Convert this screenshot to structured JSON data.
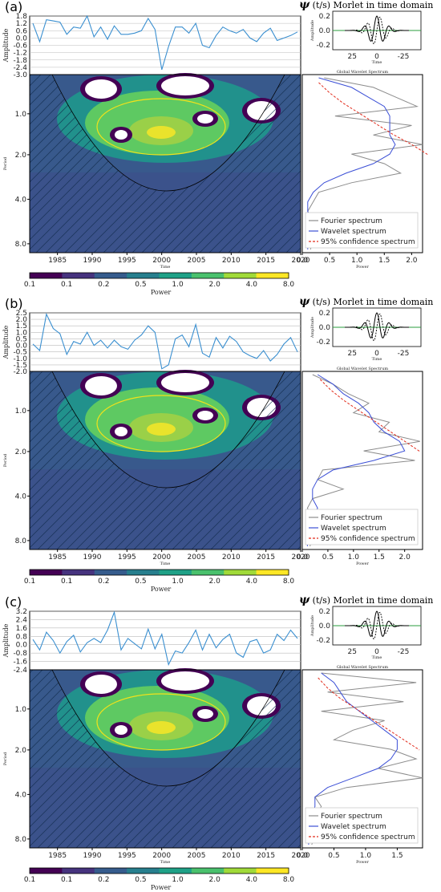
{
  "colors": {
    "colormap": [
      "#440154",
      "#3b528b",
      "#21918c",
      "#5ec962",
      "#9ad048",
      "#fde725"
    ],
    "timeseries": "#3a8fd0",
    "contour": "#f2e21a",
    "fourier": "#8c8c8c",
    "wavelet": "#3b4fd6",
    "confidence": "#e22b1b"
  },
  "labels": {
    "amplitude": "Amplitude",
    "period": "Period",
    "time": "Time",
    "power": "Power",
    "global_title": "Global Wavelet Spectrum",
    "morlet_title_sym": "ψ",
    "morlet_title_rest": "(t/s) Morlet in time domain",
    "morlet_ylabel": "Amplitude",
    "morlet_xlabel": "Time",
    "legend_fourier": "Fourier spectrum",
    "legend_wavelet": "Wavelet spectrum",
    "legend_conf": "95% confidence spectrum"
  },
  "morlet": {
    "y_ticks": [
      "0.2",
      "0.0",
      "-0.2"
    ],
    "x_ticks": [
      "25",
      "0",
      "-25"
    ]
  },
  "chart_data": [
    {
      "panel": "(a)",
      "type": "line",
      "series_time": {
        "x_start": 1981,
        "x_end": 2020,
        "y_ticks": [
          "1.8",
          "1.2",
          "0.6",
          "0.0",
          "-0.6",
          "-1.2",
          "-1.8",
          "-2.4",
          "-3.0"
        ],
        "ylim": [
          -3.0,
          1.8
        ],
        "values": [
          1.2,
          -0.3,
          1.5,
          1.4,
          1.3,
          0.3,
          0.9,
          0.8,
          1.8,
          0.1,
          0.9,
          -0.1,
          1.0,
          0.3,
          0.3,
          0.4,
          0.6,
          1.6,
          0.7,
          -2.6,
          -0.7,
          0.9,
          0.9,
          0.4,
          1.2,
          -0.6,
          -0.8,
          0.2,
          0.9,
          0.6,
          0.4,
          0.7,
          0.0,
          -0.3,
          0.4,
          0.8,
          -0.2,
          0.0,
          0.2,
          0.5
        ]
      },
      "wavelet": {
        "x_ticks": [
          "1985",
          "1990",
          "1995",
          "2000",
          "2005",
          "2010",
          "2015",
          "2020"
        ],
        "y_ticks": [
          "1.0",
          "2.0",
          "4.0",
          "8.0"
        ],
        "xlim": [
          1981,
          2020
        ]
      },
      "global": {
        "x_ticks": [
          "0.0",
          "0.5",
          "1.0",
          "1.5",
          "2.0"
        ],
        "xlim": [
          0,
          2.2
        ],
        "fourier": [
          0.4,
          1.3,
          1.7,
          2.1,
          0.6,
          2.0,
          1.3,
          2.2,
          0.9,
          1.5,
          1.8,
          0.9,
          0.3,
          0.2,
          0.1,
          0.2,
          0.1,
          0.2,
          0.15
        ],
        "wavelet": [
          0.3,
          0.9,
          1.2,
          1.5,
          1.6,
          1.6,
          1.6,
          1.7,
          1.6,
          1.3,
          0.8,
          0.4,
          0.2,
          0.1,
          0.1,
          0.15,
          0.1,
          0.1,
          0.1
        ],
        "confidence": [
          0.3,
          0.5,
          0.75,
          1.05,
          1.35,
          1.65,
          2.0,
          2.3
        ]
      },
      "colorbar": {
        "ticks": [
          "0.1",
          "0.1",
          "0.2",
          "0.5",
          "1.0",
          "2.0",
          "4.0",
          "8.0"
        ]
      }
    },
    {
      "panel": "(b)",
      "type": "line",
      "series_time": {
        "x_start": 1981,
        "x_end": 2020,
        "y_ticks": [
          "2.5",
          "2.0",
          "1.5",
          "1.0",
          "0.5",
          "0.0",
          "-0.5",
          "-1.0",
          "-1.5",
          "-2.0"
        ],
        "ylim": [
          -2.0,
          2.5
        ],
        "values": [
          0.1,
          -0.4,
          2.4,
          1.3,
          0.9,
          -0.7,
          0.3,
          0.1,
          1.0,
          0.0,
          0.4,
          -0.2,
          0.4,
          -0.1,
          -0.3,
          0.4,
          0.8,
          1.5,
          1.0,
          -1.8,
          -1.5,
          0.5,
          0.8,
          -0.1,
          1.6,
          -0.6,
          -0.9,
          0.6,
          -0.2,
          0.7,
          0.3,
          -0.5,
          -0.8,
          -1.0,
          -0.4,
          -1.2,
          -0.7,
          0.1,
          0.6,
          -0.5
        ]
      },
      "wavelet": {
        "x_ticks": [
          "1985",
          "1990",
          "1995",
          "2000",
          "2005",
          "2010",
          "2015",
          "2020"
        ],
        "y_ticks": [
          "1.0",
          "2.0",
          "4.0",
          "8.0"
        ],
        "xlim": [
          1981,
          2020
        ]
      },
      "global": {
        "x_ticks": [
          "0.0",
          "0.5",
          "1.0",
          "1.5",
          "2.0"
        ],
        "xlim": [
          0,
          2.35
        ],
        "fourier": [
          0.2,
          0.6,
          0.9,
          1.3,
          1.0,
          1.7,
          1.5,
          2.3,
          1.2,
          2.2,
          0.4,
          0.3,
          0.8,
          0.2,
          0.1,
          0.2,
          0.3,
          0.2,
          0.15
        ],
        "wavelet": [
          0.3,
          0.6,
          0.8,
          1.1,
          1.3,
          1.4,
          1.6,
          1.9,
          2.0,
          1.4,
          0.6,
          0.3,
          0.2,
          0.2,
          0.3,
          0.2,
          0.15,
          0.1,
          0.1
        ],
        "confidence": [
          0.35,
          0.55,
          0.8,
          1.1,
          1.4,
          1.7,
          2.0,
          2.3
        ]
      },
      "colorbar": {
        "ticks": [
          "0.1",
          "0.1",
          "0.2",
          "0.5",
          "1.0",
          "2.0",
          "4.0",
          "8.0"
        ]
      }
    },
    {
      "panel": "(c)",
      "type": "line",
      "series_time": {
        "x_start": 1981,
        "x_end": 2020,
        "y_ticks": [
          "3.2",
          "2.4",
          "1.6",
          "0.8",
          "0.0",
          "-0.8",
          "-1.6",
          "-2.4"
        ],
        "ylim": [
          -2.4,
          3.2
        ],
        "values": [
          0.5,
          -0.5,
          1.2,
          0.4,
          -0.8,
          0.3,
          0.9,
          -0.7,
          0.2,
          0.6,
          0.2,
          1.4,
          3.1,
          -0.5,
          0.6,
          0.1,
          -0.4,
          1.5,
          -0.4,
          1.0,
          -1.9,
          -0.6,
          -0.8,
          0.2,
          1.4,
          -0.5,
          1.0,
          -0.3,
          0.5,
          1.0,
          -0.8,
          -1.2,
          0.3,
          0.5,
          -0.8,
          -0.5,
          1.0,
          0.4,
          1.4,
          0.6
        ]
      },
      "wavelet": {
        "x_ticks": [
          "1985",
          "1990",
          "1995",
          "2000",
          "2005",
          "2010",
          "2015",
          "2020"
        ],
        "y_ticks": [
          "1.0",
          "2.0",
          "4.0",
          "8.0"
        ],
        "xlim": [
          1981,
          2020
        ]
      },
      "global": {
        "x_ticks": [
          "0.0",
          "0.5",
          "1.0",
          "1.5"
        ],
        "xlim": [
          0,
          1.9
        ],
        "fourier": [
          0.3,
          1.8,
          0.4,
          1.6,
          0.3,
          1.3,
          0.8,
          0.5,
          1.4,
          1.8,
          1.2,
          1.9,
          0.7,
          0.2,
          0.3,
          0.2,
          0.1,
          0.2,
          0.15
        ],
        "wavelet": [
          0.3,
          0.5,
          0.6,
          0.7,
          0.9,
          1.1,
          1.3,
          1.5,
          1.5,
          1.4,
          1.2,
          0.8,
          0.4,
          0.2,
          0.2,
          0.15,
          0.1,
          0.1,
          0.1
        ],
        "confidence": [
          0.25,
          0.4,
          0.6,
          0.85,
          1.1,
          1.35,
          1.6,
          1.85
        ]
      },
      "colorbar": {
        "ticks": [
          "0.1",
          "0.1",
          "0.2",
          "0.5",
          "1.0",
          "2.0",
          "4.0",
          "8.0"
        ]
      }
    }
  ]
}
